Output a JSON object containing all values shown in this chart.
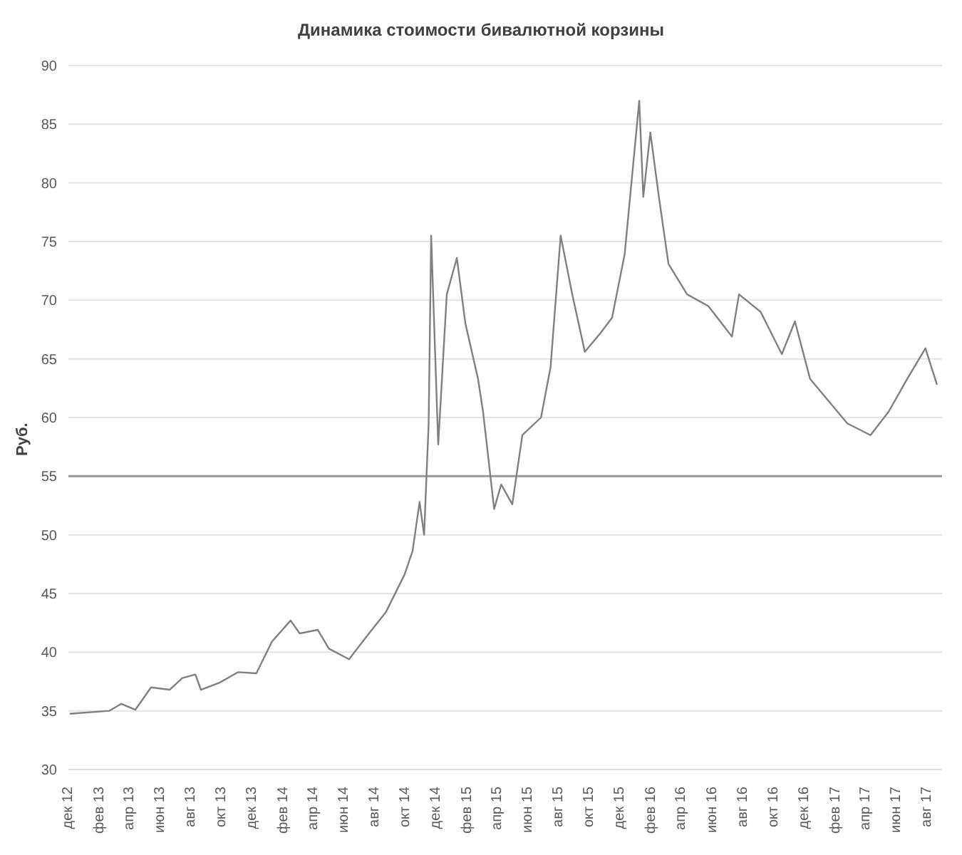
{
  "chart_data": {
    "type": "line",
    "title": "Динамика стоимости бивалютной корзины",
    "ylabel": "Руб.",
    "x": [
      "2012-12-04",
      "2013-02-20",
      "2013-03-16",
      "2013-04-13",
      "2013-05-14",
      "2013-06-20",
      "2013-07-15",
      "2013-08-10",
      "2013-08-21",
      "2013-09-27",
      "2013-11-03",
      "2013-12-09",
      "2014-01-09",
      "2014-02-15",
      "2014-03-05",
      "2014-04-10",
      "2014-05-02",
      "2014-06-11",
      "2014-07-17",
      "2014-08-23",
      "2014-09-29",
      "2014-10-15",
      "2014-10-29",
      "2014-11-07",
      "2014-11-16",
      "2014-11-21",
      "2014-12-05",
      "2014-12-22",
      "2015-01-11",
      "2015-01-28",
      "2015-02-22",
      "2015-03-04",
      "2015-03-26",
      "2015-04-09",
      "2015-05-01",
      "2015-05-21",
      "2015-06-27",
      "2015-07-16",
      "2015-08-05",
      "2015-08-28",
      "2015-09-22",
      "2015-10-23",
      "2015-11-15",
      "2015-12-10",
      "2016-01-08",
      "2016-01-16",
      "2016-01-30",
      "2016-02-16",
      "2016-03-06",
      "2016-04-12",
      "2016-05-24",
      "2016-07-10",
      "2016-07-24",
      "2016-09-05",
      "2016-10-17",
      "2016-11-12",
      "2016-12-12",
      "2017-02-24",
      "2017-04-11",
      "2017-05-17",
      "2017-06-23",
      "2017-07-29",
      "2017-08-21"
    ],
    "series": [
      {
        "color": "#808080",
        "values": [
          34.75,
          35.0,
          35.6,
          35.1,
          37.0,
          36.8,
          37.8,
          38.1,
          36.8,
          37.4,
          38.3,
          38.2,
          40.9,
          42.7,
          41.6,
          41.9,
          40.3,
          39.4,
          41.4,
          43.4,
          46.6,
          48.6,
          52.8,
          50.0,
          59.5,
          75.5,
          57.7,
          70.5,
          73.6,
          68.0,
          63.3,
          60.5,
          52.2,
          54.3,
          52.6,
          58.5,
          60.0,
          64.3,
          75.5,
          70.5,
          65.6,
          67.2,
          68.5,
          73.9,
          87.0,
          78.8,
          84.3,
          78.8,
          73.1,
          70.5,
          69.5,
          66.9,
          70.5,
          69.0,
          65.4,
          68.2,
          63.3,
          59.5,
          58.5,
          60.5,
          63.3,
          65.9,
          62.8
        ]
      }
    ],
    "xlim": [
      "2012-12-01",
      "2017-08-31"
    ],
    "xticks": [
      {
        "value": "2012-12-01",
        "label": "дек 12"
      },
      {
        "value": "2013-02-01",
        "label": "фев 13"
      },
      {
        "value": "2013-04-01",
        "label": "апр 13"
      },
      {
        "value": "2013-06-01",
        "label": "июн 13"
      },
      {
        "value": "2013-08-01",
        "label": "авг 13"
      },
      {
        "value": "2013-10-01",
        "label": "окт 13"
      },
      {
        "value": "2013-12-01",
        "label": "дек 13"
      },
      {
        "value": "2014-02-01",
        "label": "фев 14"
      },
      {
        "value": "2014-04-01",
        "label": "апр 14"
      },
      {
        "value": "2014-06-01",
        "label": "июн 14"
      },
      {
        "value": "2014-08-01",
        "label": "авг 14"
      },
      {
        "value": "2014-10-01",
        "label": "окт 14"
      },
      {
        "value": "2014-12-01",
        "label": "дек 14"
      },
      {
        "value": "2015-02-01",
        "label": "фев 15"
      },
      {
        "value": "2015-04-01",
        "label": "апр 15"
      },
      {
        "value": "2015-06-01",
        "label": "июн 15"
      },
      {
        "value": "2015-08-01",
        "label": "авг 15"
      },
      {
        "value": "2015-10-01",
        "label": "окт 15"
      },
      {
        "value": "2015-12-01",
        "label": "дек 15"
      },
      {
        "value": "2016-02-01",
        "label": "фев 16"
      },
      {
        "value": "2016-04-01",
        "label": "апр 16"
      },
      {
        "value": "2016-06-01",
        "label": "июн 16"
      },
      {
        "value": "2016-08-01",
        "label": "авг 16"
      },
      {
        "value": "2016-10-01",
        "label": "окт 16"
      },
      {
        "value": "2016-12-01",
        "label": "дек 16"
      },
      {
        "value": "2017-02-01",
        "label": "фев 17"
      },
      {
        "value": "2017-04-01",
        "label": "апр 17"
      },
      {
        "value": "2017-06-01",
        "label": "июн 17"
      },
      {
        "value": "2017-08-01",
        "label": "авг 17"
      }
    ],
    "ylim": [
      30,
      90
    ],
    "yticks": [
      30,
      35,
      40,
      45,
      50,
      55,
      60,
      65,
      70,
      75,
      80,
      85,
      90
    ],
    "grid": "y",
    "ref_lines": [
      {
        "axis": "y",
        "value": 55,
        "color": "#9a9a9a"
      }
    ]
  }
}
